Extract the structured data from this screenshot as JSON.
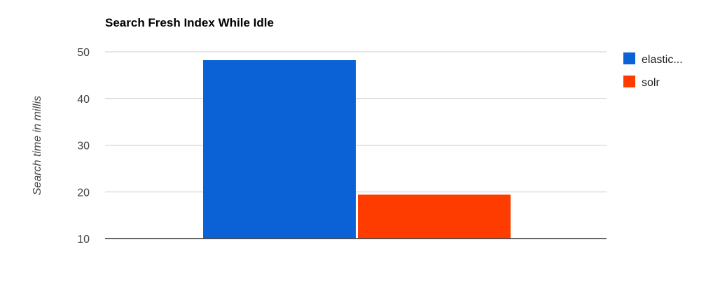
{
  "chart_data": {
    "type": "bar",
    "title": "Search Fresh Index While Idle",
    "xlabel": "",
    "ylabel": "Search time in millis",
    "categories": [
      ""
    ],
    "series": [
      {
        "name": "elastic...",
        "values": [
          48.2
        ],
        "color": "#0b62d6"
      },
      {
        "name": "solr",
        "values": [
          19.4
        ],
        "color": "#ff3c00"
      }
    ],
    "ylim": [
      10,
      50
    ],
    "yticks": [
      "10",
      "20",
      "30",
      "40",
      "50"
    ],
    "grid": true,
    "legend": "right"
  }
}
